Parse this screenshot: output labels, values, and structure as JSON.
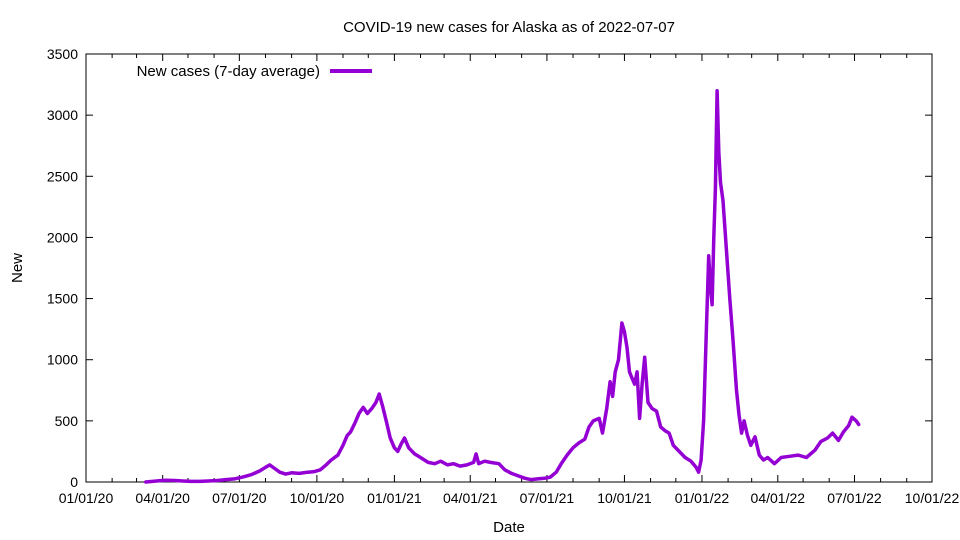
{
  "chart_data": {
    "type": "line",
    "title": "COVID-19 new cases for Alaska as of 2022-07-07",
    "xlabel": "Date",
    "ylabel": "New",
    "xlim": [
      "2020-01-01",
      "2022-10-01"
    ],
    "ylim": [
      0,
      3500
    ],
    "x_ticks": [
      {
        "date": "2020-01-01",
        "label": "01/01/20"
      },
      {
        "date": "2020-04-01",
        "label": "04/01/20"
      },
      {
        "date": "2020-07-01",
        "label": "07/01/20"
      },
      {
        "date": "2020-10-01",
        "label": "10/01/20"
      },
      {
        "date": "2021-01-01",
        "label": "01/01/21"
      },
      {
        "date": "2021-04-01",
        "label": "04/01/21"
      },
      {
        "date": "2021-07-01",
        "label": "07/01/21"
      },
      {
        "date": "2021-10-01",
        "label": "10/01/21"
      },
      {
        "date": "2022-01-01",
        "label": "01/01/22"
      },
      {
        "date": "2022-04-01",
        "label": "04/01/22"
      },
      {
        "date": "2022-07-01",
        "label": "07/01/22"
      },
      {
        "date": "2022-10-01",
        "label": "10/01/22"
      }
    ],
    "y_ticks": [
      0,
      500,
      1000,
      1500,
      2000,
      2500,
      3000,
      3500
    ],
    "grid": false,
    "legend": {
      "position": "top-left"
    },
    "series": [
      {
        "name": "New cases (7-day average)",
        "color": "#9400d3",
        "points": [
          [
            "2020-03-12",
            0
          ],
          [
            "2020-03-20",
            5
          ],
          [
            "2020-03-28",
            10
          ],
          [
            "2020-04-05",
            15
          ],
          [
            "2020-04-15",
            12
          ],
          [
            "2020-04-25",
            8
          ],
          [
            "2020-05-05",
            5
          ],
          [
            "2020-05-15",
            5
          ],
          [
            "2020-05-25",
            8
          ],
          [
            "2020-06-05",
            12
          ],
          [
            "2020-06-15",
            20
          ],
          [
            "2020-06-25",
            25
          ],
          [
            "2020-07-05",
            40
          ],
          [
            "2020-07-15",
            60
          ],
          [
            "2020-07-25",
            90
          ],
          [
            "2020-08-01",
            120
          ],
          [
            "2020-08-06",
            140
          ],
          [
            "2020-08-12",
            110
          ],
          [
            "2020-08-18",
            80
          ],
          [
            "2020-08-25",
            65
          ],
          [
            "2020-09-01",
            75
          ],
          [
            "2020-09-10",
            70
          ],
          [
            "2020-09-20",
            80
          ],
          [
            "2020-09-28",
            85
          ],
          [
            "2020-10-05",
            100
          ],
          [
            "2020-10-12",
            140
          ],
          [
            "2020-10-18",
            180
          ],
          [
            "2020-10-26",
            220
          ],
          [
            "2020-11-01",
            300
          ],
          [
            "2020-11-06",
            380
          ],
          [
            "2020-11-10",
            410
          ],
          [
            "2020-11-15",
            480
          ],
          [
            "2020-11-20",
            560
          ],
          [
            "2020-11-25",
            610
          ],
          [
            "2020-11-30",
            560
          ],
          [
            "2020-12-05",
            600
          ],
          [
            "2020-12-10",
            650
          ],
          [
            "2020-12-14",
            720
          ],
          [
            "2020-12-18",
            620
          ],
          [
            "2020-12-23",
            480
          ],
          [
            "2020-12-27",
            360
          ],
          [
            "2021-01-01",
            280
          ],
          [
            "2021-01-05",
            250
          ],
          [
            "2021-01-09",
            310
          ],
          [
            "2021-01-13",
            360
          ],
          [
            "2021-01-18",
            280
          ],
          [
            "2021-01-25",
            230
          ],
          [
            "2021-02-01",
            200
          ],
          [
            "2021-02-10",
            160
          ],
          [
            "2021-02-18",
            150
          ],
          [
            "2021-02-25",
            170
          ],
          [
            "2021-03-05",
            140
          ],
          [
            "2021-03-12",
            150
          ],
          [
            "2021-03-20",
            130
          ],
          [
            "2021-03-28",
            140
          ],
          [
            "2021-04-05",
            160
          ],
          [
            "2021-04-08",
            230
          ],
          [
            "2021-04-11",
            150
          ],
          [
            "2021-04-18",
            170
          ],
          [
            "2021-04-25",
            160
          ],
          [
            "2021-05-05",
            150
          ],
          [
            "2021-05-12",
            100
          ],
          [
            "2021-05-20",
            70
          ],
          [
            "2021-05-28",
            50
          ],
          [
            "2021-06-05",
            30
          ],
          [
            "2021-06-12",
            20
          ],
          [
            "2021-06-20",
            25
          ],
          [
            "2021-06-28",
            30
          ],
          [
            "2021-07-05",
            40
          ],
          [
            "2021-07-12",
            80
          ],
          [
            "2021-07-18",
            150
          ],
          [
            "2021-07-25",
            220
          ],
          [
            "2021-08-01",
            280
          ],
          [
            "2021-08-08",
            320
          ],
          [
            "2021-08-15",
            350
          ],
          [
            "2021-08-20",
            450
          ],
          [
            "2021-08-25",
            500
          ],
          [
            "2021-09-01",
            520
          ],
          [
            "2021-09-05",
            400
          ],
          [
            "2021-09-10",
            600
          ],
          [
            "2021-09-14",
            820
          ],
          [
            "2021-09-17",
            700
          ],
          [
            "2021-09-20",
            900
          ],
          [
            "2021-09-24",
            1000
          ],
          [
            "2021-09-28",
            1300
          ],
          [
            "2021-10-01",
            1230
          ],
          [
            "2021-10-04",
            1100
          ],
          [
            "2021-10-07",
            900
          ],
          [
            "2021-10-10",
            850
          ],
          [
            "2021-10-13",
            800
          ],
          [
            "2021-10-16",
            900
          ],
          [
            "2021-10-19",
            520
          ],
          [
            "2021-10-22",
            800
          ],
          [
            "2021-10-25",
            1020
          ],
          [
            "2021-10-29",
            650
          ],
          [
            "2021-11-03",
            600
          ],
          [
            "2021-11-08",
            580
          ],
          [
            "2021-11-13",
            450
          ],
          [
            "2021-11-18",
            420
          ],
          [
            "2021-11-23",
            400
          ],
          [
            "2021-11-28",
            300
          ],
          [
            "2021-12-05",
            250
          ],
          [
            "2021-12-12",
            200
          ],
          [
            "2021-12-19",
            170
          ],
          [
            "2021-12-25",
            120
          ],
          [
            "2021-12-28",
            80
          ],
          [
            "2021-12-31",
            180
          ],
          [
            "2022-01-03",
            500
          ],
          [
            "2022-01-06",
            1200
          ],
          [
            "2022-01-09",
            1850
          ],
          [
            "2022-01-11",
            1600
          ],
          [
            "2022-01-13",
            1450
          ],
          [
            "2022-01-15",
            2000
          ],
          [
            "2022-01-17",
            2400
          ],
          [
            "2022-01-19",
            3200
          ],
          [
            "2022-01-21",
            2700
          ],
          [
            "2022-01-23",
            2450
          ],
          [
            "2022-01-26",
            2300
          ],
          [
            "2022-01-30",
            1900
          ],
          [
            "2022-02-03",
            1500
          ],
          [
            "2022-02-07",
            1150
          ],
          [
            "2022-02-11",
            750
          ],
          [
            "2022-02-14",
            550
          ],
          [
            "2022-02-17",
            400
          ],
          [
            "2022-02-20",
            500
          ],
          [
            "2022-02-24",
            380
          ],
          [
            "2022-02-28",
            300
          ],
          [
            "2022-03-05",
            370
          ],
          [
            "2022-03-10",
            220
          ],
          [
            "2022-03-15",
            180
          ],
          [
            "2022-03-20",
            200
          ],
          [
            "2022-03-28",
            150
          ],
          [
            "2022-04-05",
            200
          ],
          [
            "2022-04-15",
            210
          ],
          [
            "2022-04-25",
            220
          ],
          [
            "2022-05-05",
            200
          ],
          [
            "2022-05-15",
            260
          ],
          [
            "2022-05-22",
            330
          ],
          [
            "2022-05-30",
            360
          ],
          [
            "2022-06-05",
            400
          ],
          [
            "2022-06-12",
            340
          ],
          [
            "2022-06-18",
            410
          ],
          [
            "2022-06-24",
            460
          ],
          [
            "2022-06-28",
            530
          ],
          [
            "2022-07-03",
            500
          ],
          [
            "2022-07-06",
            470
          ]
        ]
      }
    ]
  }
}
